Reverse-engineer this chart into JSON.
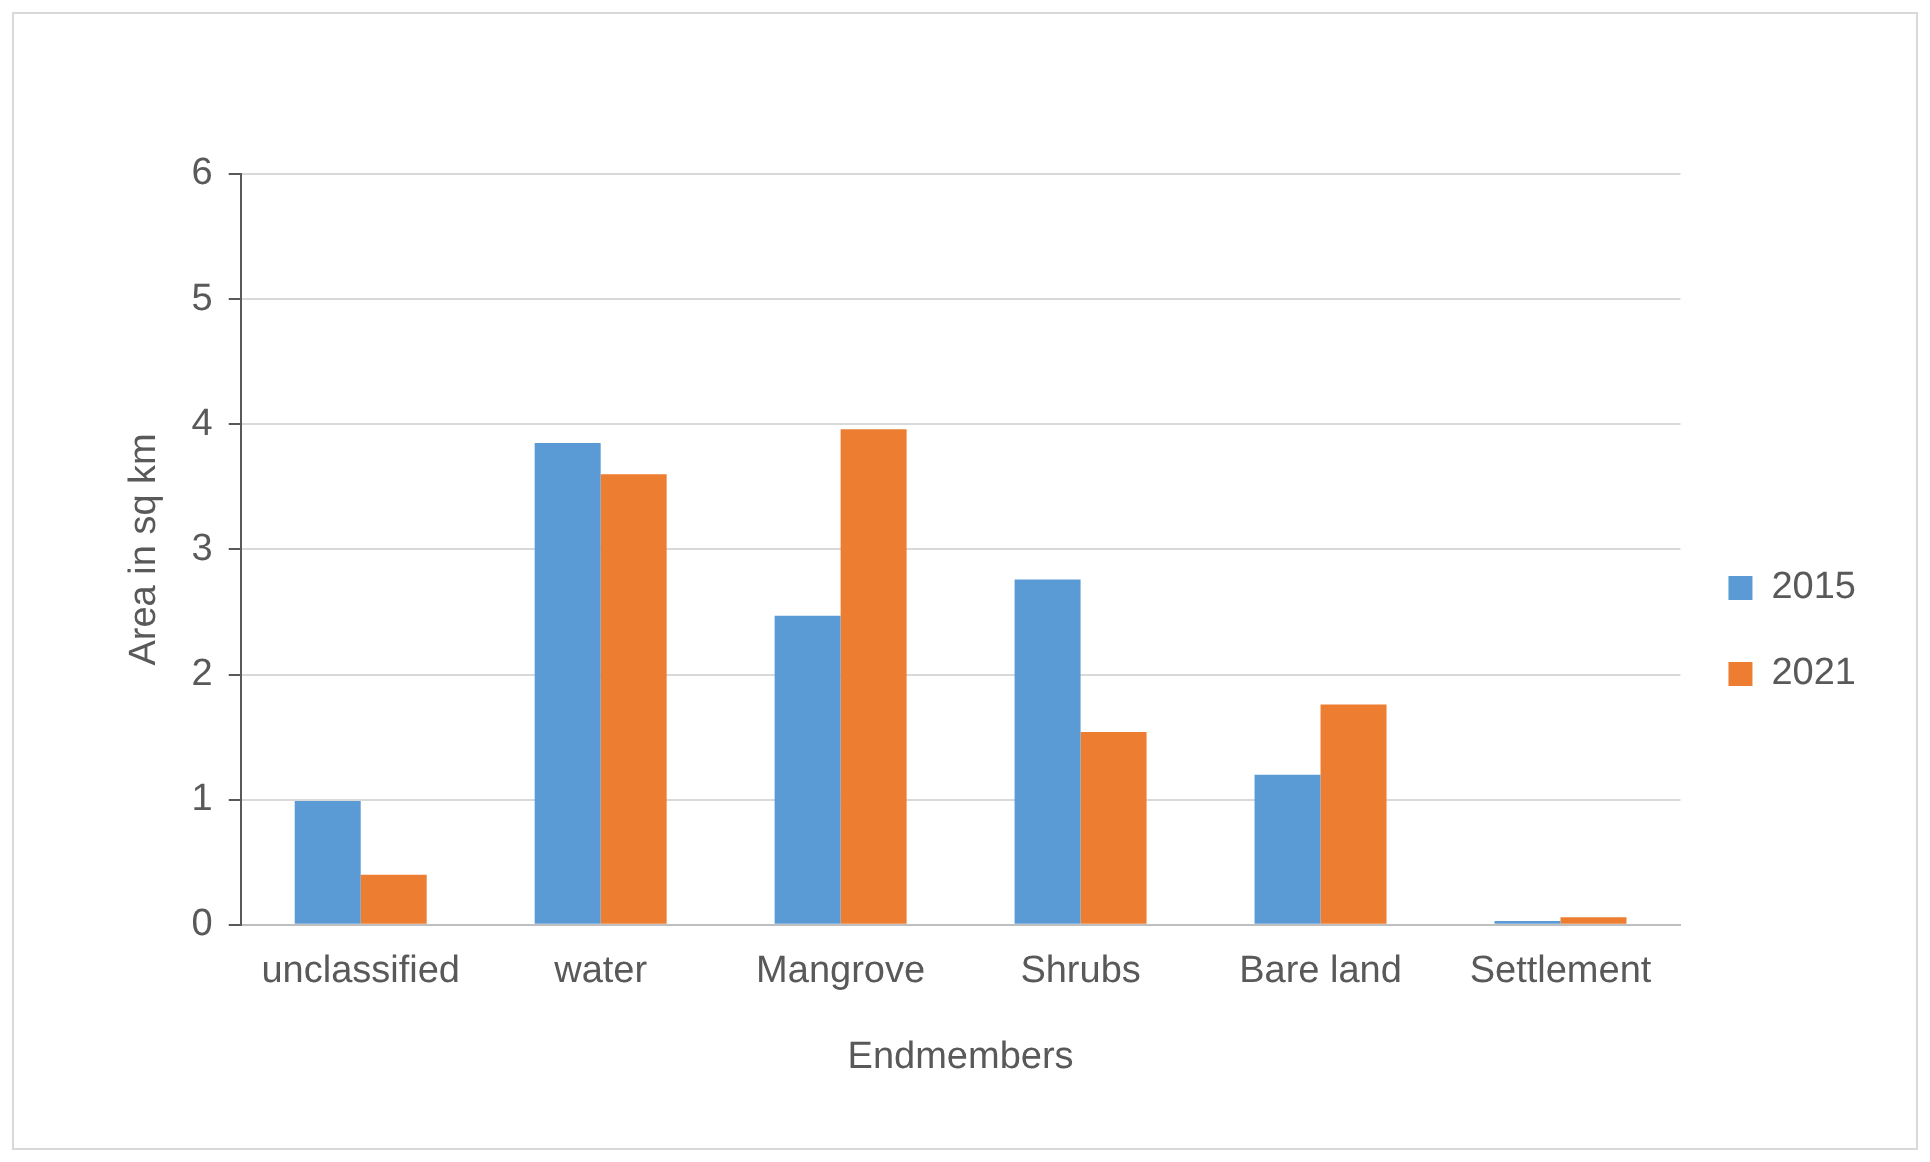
{
  "chart_data": {
    "type": "bar",
    "xlabel": "Endmembers",
    "ylabel": "Area in sq km",
    "categories": [
      "unclassified",
      "water",
      "Mangrove",
      "Shrubs",
      "Bare land",
      "Settlement"
    ],
    "series": [
      {
        "name": "2015",
        "color": "#5b9bd5",
        "values": [
          0.99,
          3.85,
          2.47,
          2.76,
          1.2,
          0.03
        ]
      },
      {
        "name": "2021",
        "color": "#ed7d31",
        "values": [
          0.4,
          3.6,
          3.96,
          1.54,
          1.76,
          0.06
        ]
      }
    ],
    "ylim": [
      0,
      6
    ],
    "yticks": [
      0,
      1,
      2,
      3,
      4,
      5,
      6
    ],
    "grid": "y",
    "legend": "right"
  }
}
